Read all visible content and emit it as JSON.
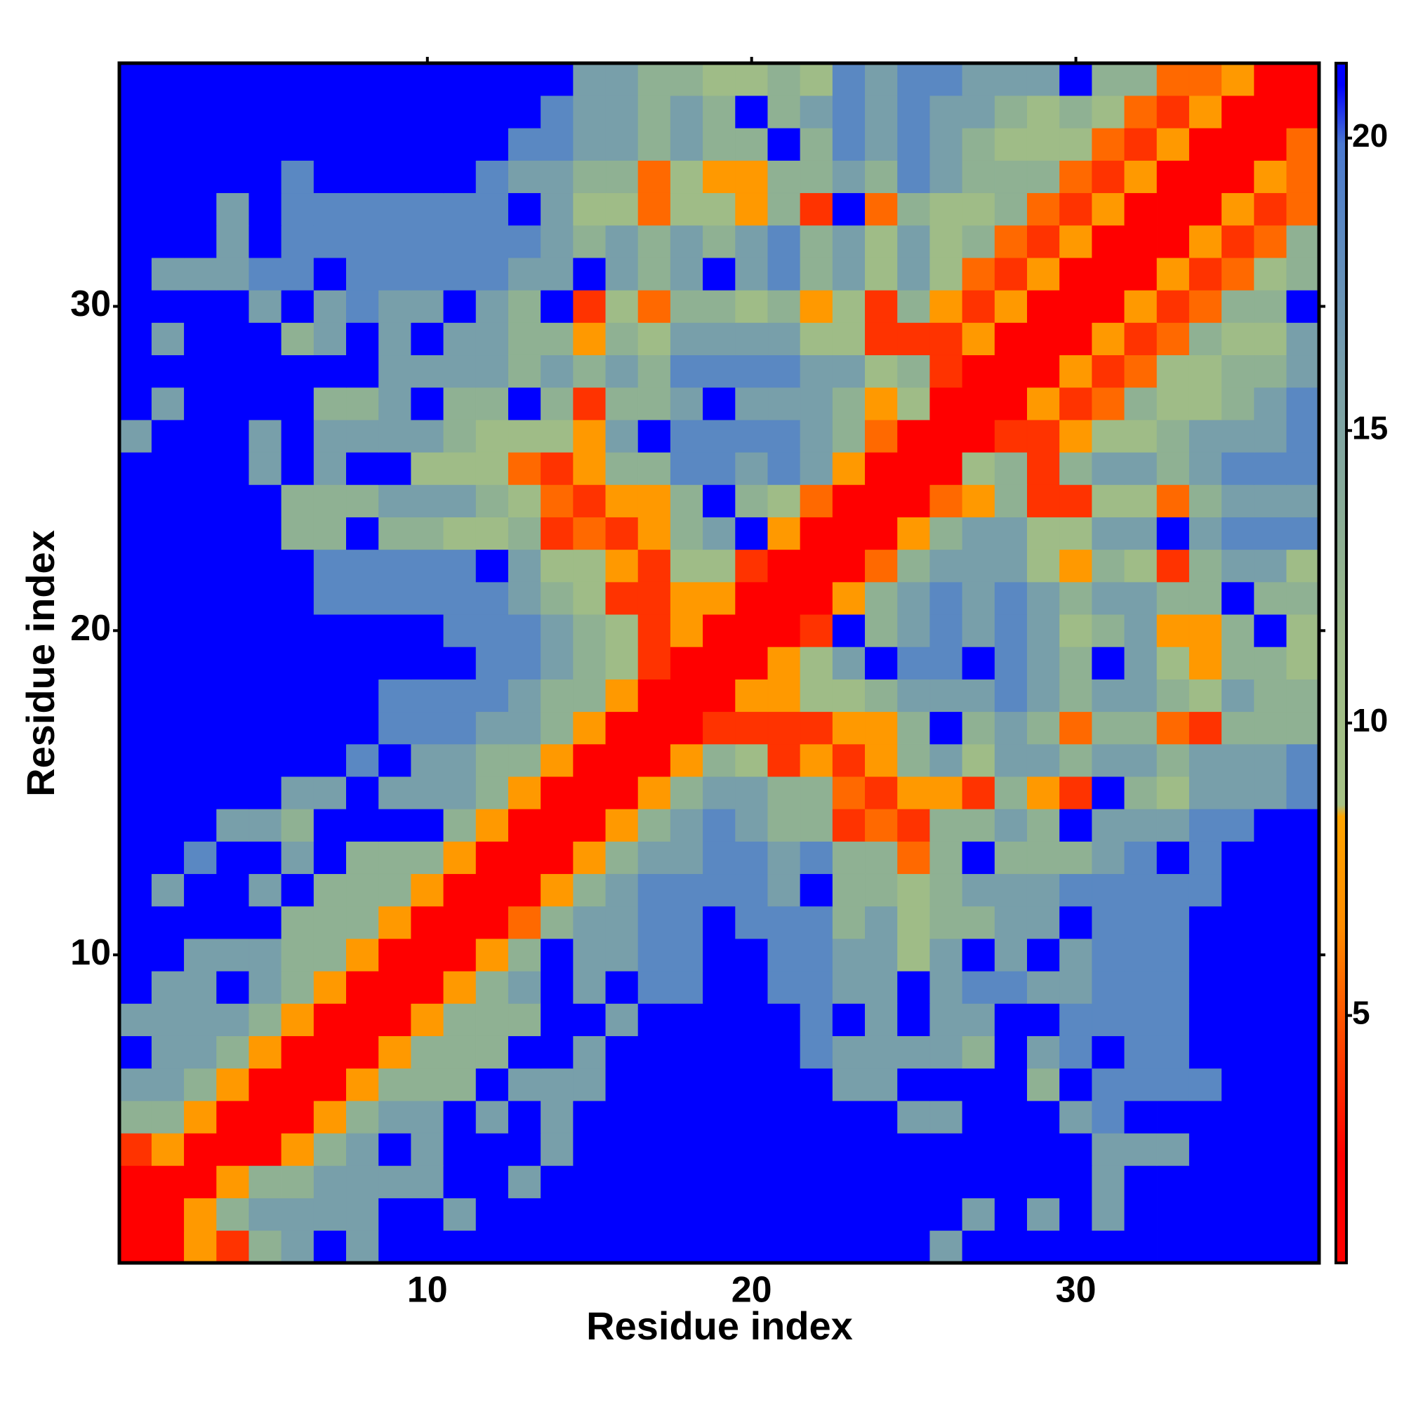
{
  "chart_data": {
    "type": "heatmap",
    "xlabel": "Residue index",
    "ylabel": "Residue index",
    "x": [
      1,
      2,
      3,
      4,
      5,
      6,
      7,
      8,
      9,
      10,
      11,
      12,
      13,
      14,
      15,
      16,
      17,
      18,
      19,
      20,
      21,
      22,
      23,
      24,
      25,
      26,
      27,
      28,
      29,
      30,
      31,
      32,
      33,
      34,
      35,
      36,
      37
    ],
    "y": [
      1,
      2,
      3,
      4,
      5,
      6,
      7,
      8,
      9,
      10,
      11,
      12,
      13,
      14,
      15,
      16,
      17,
      18,
      19,
      20,
      21,
      22,
      23,
      24,
      25,
      26,
      27,
      28,
      29,
      30,
      31,
      32,
      33,
      34,
      35,
      36,
      37
    ],
    "z": [
      [
        2,
        2,
        7.5,
        4,
        13,
        16,
        21,
        16,
        21,
        21,
        21,
        21,
        21,
        21,
        21,
        21,
        21,
        21,
        21,
        21,
        21,
        21,
        21,
        21,
        21,
        16,
        21,
        21,
        21,
        21,
        21,
        21,
        21,
        21,
        21,
        21,
        21
      ],
      [
        2,
        2,
        7.5,
        13,
        16,
        16,
        16,
        16,
        21,
        21,
        16,
        21,
        21,
        21,
        21,
        21,
        21,
        21,
        21,
        21,
        21,
        21,
        21,
        21,
        21,
        21,
        16,
        21,
        16,
        21,
        16,
        21,
        21,
        21,
        21,
        21,
        21
      ],
      [
        2,
        2,
        2,
        7.5,
        13,
        13,
        16,
        16,
        16,
        16,
        21,
        21,
        16,
        21,
        21,
        21,
        21,
        21,
        21,
        21,
        21,
        21,
        21,
        21,
        21,
        21,
        21,
        21,
        21,
        21,
        16,
        21,
        21,
        21,
        21,
        21,
        21
      ],
      [
        4,
        7.5,
        2,
        2,
        2,
        7.5,
        13,
        16,
        21,
        16,
        21,
        21,
        21,
        16,
        21,
        21,
        21,
        21,
        21,
        21,
        21,
        21,
        21,
        21,
        21,
        21,
        21,
        21,
        21,
        21,
        16,
        16,
        16,
        21,
        21,
        21,
        21
      ],
      [
        13,
        13,
        7.5,
        2,
        2,
        2,
        7.5,
        13,
        16,
        16,
        21,
        16,
        21,
        16,
        21,
        21,
        21,
        21,
        21,
        21,
        21,
        21,
        21,
        21,
        16,
        16,
        21,
        21,
        21,
        16,
        18.5,
        21,
        21,
        21,
        21,
        21,
        21
      ],
      [
        16,
        16,
        13,
        7.5,
        2,
        2,
        2,
        7.5,
        13,
        13,
        13,
        21,
        16,
        16,
        16,
        21,
        21,
        21,
        21,
        21,
        21,
        21,
        16,
        16,
        21,
        21,
        21,
        21,
        13,
        21,
        18.5,
        18.5,
        18.5,
        18.5,
        21,
        21,
        21
      ],
      [
        21,
        16,
        16,
        13,
        7.5,
        2,
        2,
        2,
        7.5,
        13,
        13,
        13,
        21,
        21,
        16,
        21,
        21,
        21,
        21,
        21,
        21,
        18.5,
        16,
        16,
        16,
        16,
        13,
        21,
        16,
        18.5,
        21,
        18.5,
        18.5,
        21,
        21,
        21,
        21
      ],
      [
        16,
        16,
        16,
        16,
        13,
        7.5,
        2,
        2,
        2,
        7.5,
        13,
        13,
        13,
        21,
        21,
        16,
        21,
        21,
        21,
        21,
        21,
        18.5,
        21,
        16,
        21,
        16,
        16,
        21,
        21,
        18.5,
        18.5,
        18.5,
        18.5,
        21,
        21,
        21,
        21
      ],
      [
        21,
        16,
        16,
        21,
        16,
        13,
        7.5,
        2,
        2,
        2,
        7.5,
        13,
        16,
        21,
        16,
        21,
        18.5,
        18.5,
        21,
        21,
        18.5,
        18.5,
        16,
        16,
        21,
        16,
        18.5,
        18.5,
        16,
        16,
        18.5,
        18.5,
        18.5,
        21,
        21,
        21,
        21
      ],
      [
        21,
        21,
        16,
        16,
        16,
        13,
        13,
        7.5,
        2,
        2,
        2,
        7.5,
        13,
        21,
        16,
        16,
        18.5,
        18.5,
        21,
        21,
        18.5,
        18.5,
        16,
        16,
        11,
        16,
        21,
        16,
        21,
        16,
        18.5,
        18.5,
        18.5,
        21,
        21,
        21,
        21
      ],
      [
        21,
        21,
        21,
        21,
        21,
        13,
        13,
        13,
        7.5,
        2,
        2,
        2,
        5.5,
        13,
        16,
        16,
        18.5,
        18.5,
        21,
        18.5,
        18.5,
        18.5,
        13,
        16,
        11,
        13,
        13,
        16,
        16,
        21,
        18.5,
        18.5,
        18.5,
        21,
        21,
        21,
        21
      ],
      [
        21,
        16,
        21,
        21,
        16,
        21,
        13,
        13,
        13,
        7.5,
        2,
        2,
        2,
        7.5,
        13,
        16,
        18.5,
        18.5,
        18.5,
        18.5,
        16,
        21,
        13,
        13,
        11,
        13,
        16,
        16,
        16,
        18.5,
        18.5,
        18.5,
        18.5,
        18.5,
        21,
        21,
        21
      ],
      [
        21,
        21,
        18.5,
        21,
        21,
        16,
        21,
        13,
        13,
        13,
        7.5,
        2,
        2,
        2,
        7.5,
        13,
        16,
        16,
        18.5,
        18.5,
        16,
        18.5,
        13,
        13,
        5.5,
        13,
        21,
        13,
        13,
        13,
        16,
        18.5,
        21,
        18.5,
        21,
        21,
        21
      ],
      [
        21,
        21,
        21,
        16,
        16,
        13,
        21,
        21,
        21,
        21,
        13,
        7.5,
        2,
        2,
        2,
        7.5,
        13,
        16,
        18.5,
        16,
        13,
        13,
        4,
        5.5,
        4,
        13,
        13,
        16,
        13,
        21,
        16,
        16,
        16,
        18.5,
        18.5,
        21,
        21
      ],
      [
        21,
        21,
        21,
        21,
        21,
        16,
        16,
        21,
        16,
        16,
        16,
        13,
        7.5,
        2,
        2,
        2,
        7.5,
        13,
        16,
        16,
        13,
        13,
        5.5,
        4,
        7.5,
        7.5,
        4,
        13,
        7.5,
        4,
        21,
        13,
        11,
        16,
        16,
        16,
        18.5
      ],
      [
        21,
        21,
        21,
        21,
        21,
        21,
        21,
        18.5,
        21,
        16,
        16,
        13,
        13,
        7.5,
        2,
        2,
        2,
        7.5,
        13,
        11,
        4,
        7.5,
        4,
        7.5,
        13,
        16,
        11,
        16,
        16,
        13,
        16,
        16,
        13,
        16,
        16,
        16,
        18.5
      ],
      [
        21,
        21,
        21,
        21,
        21,
        21,
        21,
        21,
        18.5,
        18.5,
        18.5,
        16,
        16,
        13,
        7.5,
        2,
        2,
        2,
        4,
        4,
        4,
        4,
        7.5,
        7.5,
        13,
        21,
        13,
        16,
        13,
        5.5,
        13,
        13,
        5.5,
        4,
        13,
        13,
        13
      ],
      [
        21,
        21,
        21,
        21,
        21,
        21,
        21,
        21,
        18.5,
        18.5,
        18.5,
        18.5,
        16,
        13,
        13,
        7.5,
        2,
        2,
        2,
        7.5,
        7.5,
        11,
        11,
        13,
        16,
        16,
        16,
        18.5,
        16,
        13,
        16,
        16,
        13,
        11,
        16,
        13,
        13
      ],
      [
        21,
        21,
        21,
        21,
        21,
        21,
        21,
        21,
        21,
        21,
        21,
        18.5,
        18.5,
        16,
        13,
        11,
        4,
        2,
        2,
        2,
        7.5,
        11,
        16,
        21,
        18.5,
        18.5,
        21,
        18.5,
        16,
        13,
        21,
        16,
        11,
        7.5,
        13,
        13,
        11
      ],
      [
        21,
        21,
        21,
        21,
        21,
        21,
        21,
        21,
        21,
        21,
        18.5,
        18.5,
        18.5,
        16,
        13,
        11,
        4,
        7.5,
        2,
        2,
        2,
        4,
        21,
        13,
        16,
        18.5,
        16,
        18.5,
        16,
        11,
        13,
        16,
        7.5,
        7.5,
        13,
        21,
        11
      ],
      [
        21,
        21,
        21,
        21,
        21,
        21,
        18.5,
        18.5,
        18.5,
        18.5,
        18.5,
        18.5,
        16,
        13,
        11,
        4,
        4,
        7.5,
        7.5,
        2,
        2,
        2,
        7.5,
        13,
        16,
        18.5,
        16,
        18.5,
        16,
        13,
        16,
        16,
        13,
        13,
        21,
        13,
        13
      ],
      [
        21,
        21,
        21,
        21,
        21,
        21,
        18.5,
        18.5,
        18.5,
        18.5,
        18.5,
        21,
        16,
        11,
        11,
        7.5,
        4,
        11,
        11,
        4,
        2,
        2,
        2,
        5.5,
        13,
        16,
        16,
        16,
        11,
        7.5,
        13,
        11,
        4,
        13,
        16,
        16,
        11
      ],
      [
        21,
        21,
        21,
        21,
        21,
        13,
        13,
        21,
        13,
        13,
        11,
        11,
        13,
        4,
        5.5,
        4,
        7.5,
        13,
        16,
        21,
        7.5,
        2,
        2,
        2,
        7.5,
        13,
        16,
        16,
        11,
        11,
        16,
        16,
        21,
        16,
        18.5,
        18.5,
        18.5
      ],
      [
        21,
        21,
        21,
        21,
        21,
        13,
        13,
        13,
        16,
        16,
        16,
        13,
        11,
        5.5,
        4,
        7.5,
        7.5,
        13,
        21,
        13,
        11,
        5.5,
        2,
        2,
        2,
        5.5,
        7.5,
        13,
        4,
        4,
        11,
        11,
        5.5,
        13,
        16,
        16,
        16
      ],
      [
        21,
        21,
        21,
        21,
        16,
        21,
        16,
        21,
        21,
        11,
        11,
        11,
        5.5,
        4,
        7.5,
        13,
        13,
        18.5,
        18.5,
        16,
        18.5,
        16,
        7.5,
        2,
        2,
        2,
        11,
        13,
        4,
        13,
        16,
        16,
        13,
        16,
        18.5,
        18.5,
        18.5
      ],
      [
        16,
        21,
        21,
        21,
        16,
        21,
        16,
        16,
        16,
        16,
        13,
        11,
        11,
        11,
        7.5,
        16,
        21,
        18.5,
        18.5,
        18.5,
        18.5,
        16,
        13,
        5.5,
        2,
        2,
        2,
        4,
        4,
        7.5,
        11,
        11,
        13,
        16,
        16,
        16,
        18.5
      ],
      [
        21,
        16,
        21,
        21,
        21,
        21,
        13,
        13,
        16,
        21,
        13,
        13,
        21,
        13,
        4,
        13,
        13,
        16,
        21,
        16,
        16,
        16,
        13,
        7.5,
        11,
        2,
        2,
        2,
        7.5,
        4,
        5.5,
        13,
        11,
        11,
        13,
        16,
        18.5
      ],
      [
        21,
        21,
        21,
        21,
        21,
        21,
        21,
        21,
        16,
        16,
        16,
        16,
        13,
        16,
        13,
        16,
        13,
        18.5,
        18.5,
        18.5,
        18.5,
        16,
        16,
        11,
        13,
        4,
        2,
        2,
        2,
        7.5,
        4,
        5.5,
        11,
        11,
        13,
        13,
        16
      ],
      [
        21,
        16,
        21,
        21,
        21,
        13,
        16,
        21,
        16,
        21,
        16,
        16,
        13,
        13,
        7.5,
        13,
        11,
        16,
        16,
        16,
        16,
        11,
        11,
        4,
        4,
        4,
        7.5,
        2,
        2,
        2,
        7.5,
        4,
        5.5,
        13,
        11,
        11,
        16
      ],
      [
        21,
        21,
        21,
        21,
        16,
        21,
        16,
        18.5,
        16,
        16,
        21,
        16,
        13,
        21,
        4,
        11,
        5.5,
        13,
        13,
        11,
        13,
        7.5,
        11,
        4,
        13,
        7.5,
        4,
        7.5,
        2,
        2,
        2,
        7.5,
        4,
        5.5,
        13,
        13,
        21
      ],
      [
        21,
        16,
        16,
        16,
        18.5,
        18.5,
        21,
        18.5,
        18.5,
        18.5,
        18.5,
        18.5,
        16,
        16,
        21,
        16,
        13,
        16,
        21,
        16,
        18.5,
        13,
        16,
        11,
        16,
        11,
        5.5,
        4,
        7.5,
        2,
        2,
        2,
        7.5,
        4,
        5.5,
        11,
        13
      ],
      [
        21,
        21,
        21,
        16,
        21,
        18.5,
        18.5,
        18.5,
        18.5,
        18.5,
        18.5,
        18.5,
        18.5,
        16,
        13,
        16,
        13,
        16,
        13,
        16,
        18.5,
        13,
        16,
        11,
        16,
        11,
        13,
        5.5,
        4,
        7.5,
        2,
        2,
        2,
        7.5,
        4,
        5.5,
        13
      ],
      [
        21,
        21,
        21,
        16,
        21,
        18.5,
        18.5,
        18.5,
        18.5,
        18.5,
        18.5,
        18.5,
        21,
        16,
        11,
        11,
        5.5,
        11,
        11,
        7.5,
        13,
        4,
        21,
        5.5,
        13,
        11,
        11,
        13,
        5.5,
        4,
        7.5,
        2,
        2,
        2,
        7.5,
        4,
        5.5
      ],
      [
        21,
        21,
        21,
        21,
        21,
        18.5,
        21,
        21,
        21,
        21,
        21,
        18.5,
        16,
        16,
        13,
        13,
        5.5,
        11,
        7.5,
        7.5,
        13,
        13,
        16,
        13,
        18.5,
        16,
        13,
        13,
        13,
        5.5,
        4,
        7.5,
        2,
        2,
        2,
        7.5,
        5.5
      ],
      [
        21,
        21,
        21,
        21,
        21,
        21,
        21,
        21,
        21,
        21,
        21,
        21,
        18.5,
        18.5,
        16,
        16,
        13,
        16,
        13,
        13,
        21,
        13,
        18.5,
        16,
        18.5,
        16,
        13,
        11,
        11,
        11,
        5.5,
        4,
        7.5,
        2,
        2,
        2,
        5.5
      ],
      [
        21,
        21,
        21,
        21,
        21,
        21,
        21,
        21,
        21,
        21,
        21,
        21,
        21,
        18.5,
        16,
        16,
        13,
        16,
        13,
        21,
        13,
        16,
        18.5,
        16,
        18.5,
        16,
        16,
        13,
        11,
        13,
        11,
        5.5,
        4,
        7.5,
        2,
        2,
        2
      ],
      [
        21,
        21,
        21,
        21,
        21,
        21,
        21,
        21,
        21,
        21,
        21,
        21,
        21,
        21,
        16,
        16,
        13,
        13,
        11,
        11,
        13,
        11,
        18.5,
        16,
        18.5,
        18.5,
        16,
        16,
        16,
        21,
        13,
        13,
        5.5,
        5.5,
        7.5,
        2,
        2
      ]
    ],
    "xlim": [
      0.5,
      37.5
    ],
    "ylim": [
      0.5,
      37.5
    ],
    "xticks": [
      10,
      20,
      30
    ],
    "yticks": [
      10,
      20,
      30
    ],
    "clim": [
      0.77,
      21.28
    ],
    "cticks": [
      5,
      10,
      15,
      20
    ],
    "colorscale": [
      [
        0.77,
        "#ff0000"
      ],
      [
        2.6,
        "#ff0000"
      ],
      [
        4.5,
        "#ff4500"
      ],
      [
        6.5,
        "#ff8c00"
      ],
      [
        8.4,
        "#ffa500"
      ],
      [
        8.6,
        "#a6c285"
      ],
      [
        11.5,
        "#9dbb88"
      ],
      [
        13.5,
        "#8aad96"
      ],
      [
        16,
        "#789faa"
      ],
      [
        18.5,
        "#5a88c2"
      ],
      [
        19.9,
        "#4a78d0"
      ],
      [
        20.9,
        "#0000ff"
      ],
      [
        21.28,
        "#0000ff"
      ]
    ]
  }
}
